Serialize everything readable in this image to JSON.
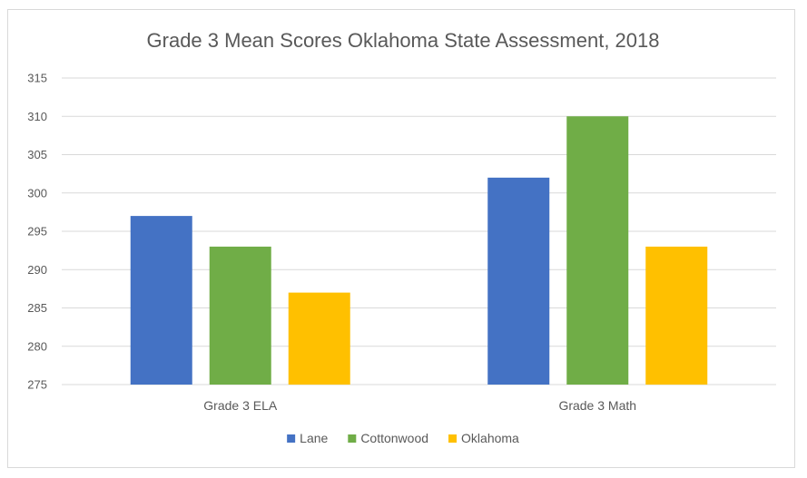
{
  "chart_data": {
    "type": "bar",
    "title": "Grade 3 Mean Scores Oklahoma State Assessment, 2018",
    "categories": [
      "Grade 3 ELA",
      "Grade 3 Math"
    ],
    "series": [
      {
        "name": "Lane",
        "values": [
          297,
          302
        ],
        "color": "#4472c4"
      },
      {
        "name": "Cottonwood",
        "values": [
          293,
          310
        ],
        "color": "#70ad47"
      },
      {
        "name": "Oklahoma",
        "values": [
          287,
          293
        ],
        "color": "#ffc000"
      }
    ],
    "ylim": [
      275,
      315
    ],
    "yticks": [
      275,
      280,
      285,
      290,
      295,
      300,
      305,
      310,
      315
    ],
    "xlabel": "",
    "ylabel": "",
    "grid": true,
    "legend_position": "bottom"
  }
}
